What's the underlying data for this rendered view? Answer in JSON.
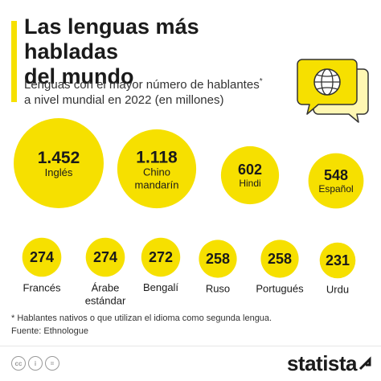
{
  "header": {
    "title_line1": "Las lenguas más habladas",
    "title_line2": "del mundo",
    "subtitle_line1": "Lenguas con el mayor número de hablantes",
    "subtitle_marker": "*",
    "subtitle_line2": "a nivel mundial en 2022 (en millones)"
  },
  "chart_data": {
    "type": "bubble",
    "unit": "millones",
    "categories": [
      "Inglés",
      "Chino mandarín",
      "Hindi",
      "Español",
      "Francés",
      "Árabe estándar",
      "Bengalí",
      "Ruso",
      "Portugués",
      "Urdu"
    ],
    "values": [
      1452,
      1118,
      602,
      548,
      274,
      274,
      272,
      258,
      258,
      231
    ],
    "labels": [
      "1.452",
      "1.118",
      "602",
      "548",
      "274",
      "274",
      "272",
      "258",
      "258",
      "231"
    ],
    "label_lines": [
      [
        "Inglés"
      ],
      [
        "Chino",
        "mandarín"
      ],
      [
        "Hindi"
      ],
      [
        "Español"
      ],
      [
        "Francés"
      ],
      [
        "Árabe",
        "estándar"
      ],
      [
        "Bengalí"
      ],
      [
        "Ruso"
      ],
      [
        "Portugués"
      ],
      [
        "Urdu"
      ]
    ],
    "bubble_color": "#f6e000"
  },
  "footnote": {
    "line1": "* Hablantes nativos o que utilizan el idioma como segunda lengua.",
    "line2": "Fuente: Ethnologue"
  },
  "footer": {
    "license_icons": [
      "cc-icon",
      "attribution-icon",
      "no-derivatives-icon"
    ],
    "license_glyphs": [
      "cc",
      "i",
      "="
    ],
    "brand": "statista"
  },
  "colors": {
    "accent": "#f6e000",
    "text": "#1a1a1a",
    "globe_stroke": "#333333"
  }
}
